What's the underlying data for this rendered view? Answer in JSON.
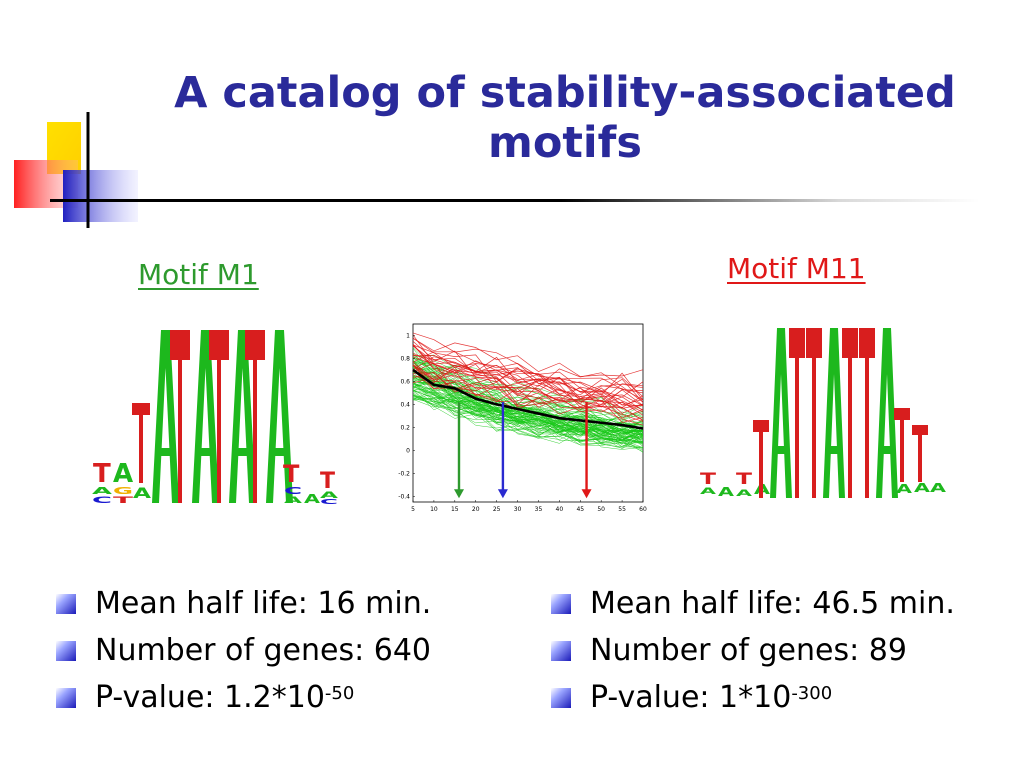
{
  "slide": {
    "title": "A catalog of stability-associated motifs"
  },
  "motif_left": {
    "label": "Motif M1",
    "stats": [
      {
        "text": "Mean half life: 16 min."
      },
      {
        "text": "Number of genes: 640"
      },
      {
        "text": "P-value: 1.2*10",
        "exponent": "-50"
      }
    ],
    "logo_top_letters": "TAAAAAT",
    "logo_color_A": "#1db81d",
    "logo_color_T": "#d81e1e"
  },
  "motif_right": {
    "label": "Motif M11",
    "stats": [
      {
        "text": "Mean half life: 46.5 min."
      },
      {
        "text": "Number of genes: 89"
      },
      {
        "text": "P-value: 1*10",
        "exponent": "-300"
      }
    ]
  },
  "chart_data": {
    "type": "line",
    "x_ticks": [
      "5",
      "10",
      "15",
      "20",
      "25",
      "30",
      "35",
      "40",
      "45",
      "50",
      "55",
      "60"
    ],
    "y_ticks": [
      "1",
      "0.8",
      "0.6",
      "0.4",
      "0.2",
      "0",
      "-0.2",
      "-0.4"
    ],
    "xlim": [
      5,
      60
    ],
    "ylim": [
      -0.45,
      1.1
    ],
    "series": [
      {
        "color": "#18c818",
        "role": "M1 genes"
      },
      {
        "color": "#e01818",
        "role": "M11 genes"
      },
      {
        "color": "#000000",
        "role": "mean",
        "x": [
          5,
          10,
          15,
          20,
          25,
          30,
          35,
          40,
          45,
          50,
          55,
          60
        ],
        "y": [
          0.7,
          0.57,
          0.54,
          0.45,
          0.4,
          0.36,
          0.32,
          0.28,
          0.26,
          0.24,
          0.22,
          0.19
        ]
      }
    ],
    "markers": [
      {
        "x": 16,
        "color": "#2e9a2e"
      },
      {
        "x": 26.5,
        "color": "#2a2ad0"
      },
      {
        "x": 46.5,
        "color": "#e01818"
      }
    ]
  }
}
